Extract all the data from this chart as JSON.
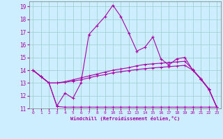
{
  "xlabel": "Windchill (Refroidissement éolien,°C)",
  "xlim": [
    -0.5,
    23.5
  ],
  "ylim": [
    11,
    19.4
  ],
  "yticks": [
    11,
    12,
    13,
    14,
    15,
    16,
    17,
    18,
    19
  ],
  "xticks": [
    0,
    1,
    2,
    3,
    4,
    5,
    6,
    7,
    8,
    9,
    10,
    11,
    12,
    13,
    14,
    15,
    16,
    17,
    18,
    19,
    20,
    21,
    22,
    23
  ],
  "bg_color": "#cceeff",
  "line_color": "#aa00aa",
  "grid_color": "#99cccc",
  "line1_x": [
    0,
    1,
    2,
    3,
    4,
    5,
    6,
    7,
    8,
    9,
    10,
    11,
    12,
    13,
    14,
    15,
    16,
    17,
    18,
    19,
    20,
    21,
    22,
    23
  ],
  "line1_y": [
    14.0,
    13.5,
    13.0,
    11.2,
    12.2,
    11.8,
    13.0,
    16.8,
    17.5,
    18.2,
    19.1,
    18.2,
    16.9,
    15.5,
    15.8,
    16.6,
    14.9,
    14.4,
    14.9,
    15.0,
    14.0,
    13.3,
    12.5,
    11.1
  ],
  "line2_x": [
    0,
    1,
    2,
    3,
    4,
    5,
    6,
    7,
    8,
    9,
    10,
    11,
    12,
    13,
    14,
    15,
    16,
    17,
    18,
    19,
    20,
    21,
    22,
    23
  ],
  "line2_y": [
    14.0,
    13.5,
    13.0,
    13.0,
    13.1,
    13.25,
    13.4,
    13.55,
    13.7,
    13.85,
    14.0,
    14.1,
    14.2,
    14.35,
    14.45,
    14.5,
    14.55,
    14.6,
    14.65,
    14.7,
    14.05,
    13.35,
    12.55,
    11.1
  ],
  "line3_x": [
    0,
    1,
    2,
    3,
    4,
    5,
    6,
    7,
    8,
    9,
    10,
    11,
    12,
    13,
    14,
    15,
    16,
    17,
    18,
    19,
    20,
    21,
    22,
    23
  ],
  "line3_y": [
    14.0,
    13.5,
    13.0,
    11.15,
    11.1,
    11.1,
    11.1,
    11.1,
    11.1,
    11.1,
    11.1,
    11.1,
    11.1,
    11.1,
    11.1,
    11.1,
    11.1,
    11.1,
    11.1,
    11.1,
    11.1,
    11.1,
    11.1,
    11.1
  ],
  "line4_x": [
    0,
    1,
    2,
    3,
    4,
    5,
    6,
    7,
    8,
    9,
    10,
    11,
    12,
    13,
    14,
    15,
    16,
    17,
    18,
    19,
    20,
    21,
    22,
    23
  ],
  "line4_y": [
    14.0,
    13.5,
    13.0,
    13.0,
    13.05,
    13.15,
    13.25,
    13.4,
    13.55,
    13.65,
    13.8,
    13.88,
    13.97,
    14.05,
    14.12,
    14.18,
    14.23,
    14.28,
    14.33,
    14.38,
    14.0,
    13.3,
    12.5,
    11.1
  ]
}
